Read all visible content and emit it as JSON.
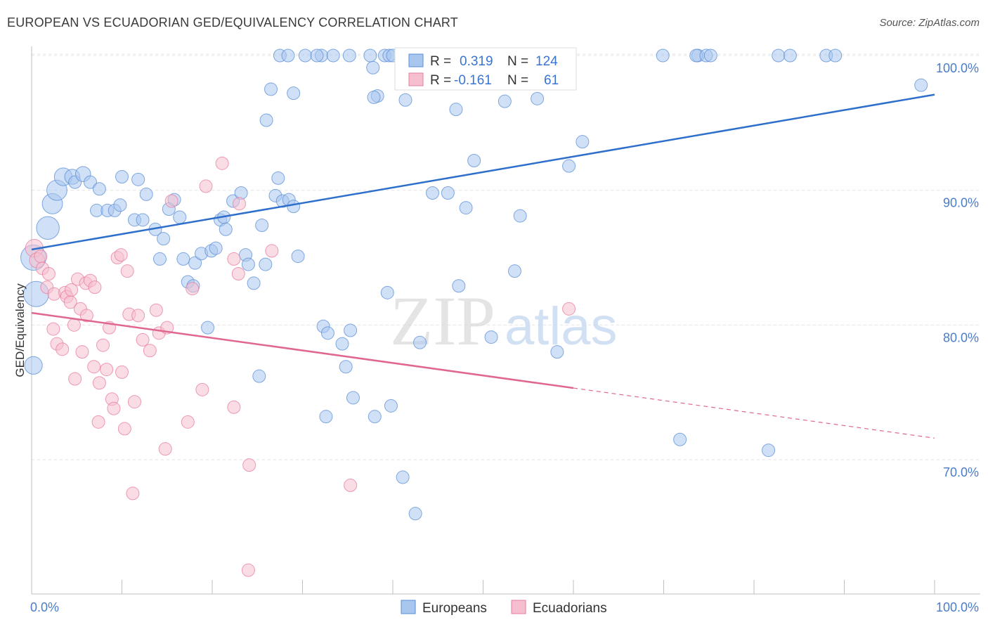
{
  "title": "EUROPEAN VS ECUADORIAN GED/EQUIVALENCY CORRELATION CHART",
  "source": "Source: ZipAtlas.com",
  "watermark": {
    "zip": "ZIP",
    "atlas": "atlas"
  },
  "legend": {
    "r_label": "R =",
    "n_label": "N =",
    "european": {
      "r": "0.319",
      "n": "124"
    },
    "ecuadorian": {
      "r": "-0.161",
      "n": "61"
    }
  },
  "bottom_legend": {
    "european": "Europeans",
    "ecuadorian": "Ecuadorians"
  },
  "colors": {
    "european": "#5b8fd6",
    "european_fill": "#a9c6ee",
    "european_line": "#2e6fcc",
    "ecuadorian": "#e77c9d",
    "ecuadorian_fill": "#f6bfd0",
    "ecuadorian_line": "#e0678f"
  },
  "chart_data": {
    "type": "scatter",
    "title": "EUROPEAN VS ECUADORIAN GED/EQUIVALENCY CORRELATION CHART",
    "xlabel": "",
    "ylabel": "GED/Equivalency",
    "xlim": [
      0,
      100
    ],
    "ylim": [
      60.5,
      102
    ],
    "x_tick_labels": [
      "0.0%",
      "100.0%"
    ],
    "y_ticks": [
      70,
      80,
      90,
      100
    ],
    "y_tick_labels": [
      "70.0%",
      "80.0%",
      "90.0%",
      "100.0%"
    ],
    "grid": true,
    "series": [
      {
        "name": "Europeans",
        "trend": {
          "x0": 0,
          "y0": 85.6,
          "x1": 100,
          "y1": 97.1,
          "dashed_from": null
        },
        "points": [
          [
            0.2,
            85.0,
            2
          ],
          [
            0.5,
            82.3,
            2
          ],
          [
            0.2,
            77.0,
            1.4
          ],
          [
            1.8,
            87.2,
            1.8
          ],
          [
            2.3,
            89.0,
            1.6
          ],
          [
            2.8,
            90.0,
            1.6
          ],
          [
            3.5,
            91.0,
            1.4
          ],
          [
            4.5,
            91.0,
            1.2
          ],
          [
            4.8,
            90.6,
            1
          ],
          [
            5.7,
            91.2,
            1.2
          ],
          [
            6.5,
            90.6,
            1
          ],
          [
            7.5,
            90.1,
            1
          ],
          [
            7.2,
            88.5,
            1
          ],
          [
            8.4,
            88.5,
            1
          ],
          [
            9.2,
            88.5,
            1
          ],
          [
            9.8,
            88.9,
            1
          ],
          [
            10,
            91.0,
            1
          ],
          [
            11.8,
            90.8,
            1
          ],
          [
            11.4,
            87.8,
            1
          ],
          [
            12.3,
            87.8,
            1
          ],
          [
            12.7,
            89.7,
            1
          ],
          [
            13.7,
            87.1,
            1
          ],
          [
            14.6,
            86.4,
            1
          ],
          [
            14.2,
            84.9,
            1
          ],
          [
            15.2,
            88.6,
            1
          ],
          [
            15.8,
            89.3,
            1
          ],
          [
            16.4,
            88.0,
            1
          ],
          [
            16.8,
            84.9,
            1
          ],
          [
            17.3,
            83.2,
            1
          ],
          [
            17.9,
            82.9,
            1
          ],
          [
            18.1,
            84.6,
            1
          ],
          [
            18.8,
            85.3,
            1
          ],
          [
            19.5,
            79.8,
            1
          ],
          [
            19.9,
            85.5,
            1
          ],
          [
            20.4,
            85.7,
            1
          ],
          [
            20.9,
            87.8,
            1
          ],
          [
            21.3,
            88.0,
            1
          ],
          [
            21.5,
            87.1,
            1
          ],
          [
            22.3,
            89.2,
            1
          ],
          [
            23.2,
            89.8,
            1
          ],
          [
            23.7,
            85.2,
            1
          ],
          [
            24.0,
            84.5,
            1
          ],
          [
            24.6,
            83.1,
            1
          ],
          [
            25.5,
            87.4,
            1
          ],
          [
            25.9,
            84.5,
            1
          ],
          [
            26.5,
            97.5,
            1
          ],
          [
            27.0,
            89.6,
            1
          ],
          [
            27.3,
            90.9,
            1
          ],
          [
            27.8,
            89.2,
            1
          ],
          [
            28.5,
            89.3,
            1
          ],
          [
            29.0,
            88.8,
            1
          ],
          [
            29.5,
            85.1,
            1
          ],
          [
            29.0,
            97.2,
            1
          ],
          [
            32.3,
            79.9,
            1
          ],
          [
            32.8,
            79.4,
            1
          ],
          [
            34.4,
            78.6,
            1
          ],
          [
            34.8,
            76.9,
            1
          ],
          [
            35.3,
            79.6,
            1
          ],
          [
            35.6,
            74.6,
            1
          ],
          [
            38.3,
            97.0,
            1
          ],
          [
            37.9,
            96.9,
            1
          ],
          [
            38.0,
            73.2,
            1
          ],
          [
            39.8,
            74.0,
            1
          ],
          [
            39.4,
            82.4,
            1
          ],
          [
            41.4,
            96.7,
            1
          ],
          [
            41.1,
            68.7,
            1
          ],
          [
            42.5,
            66.0,
            1
          ],
          [
            43.0,
            78.7,
            1
          ],
          [
            44.4,
            89.8,
            1
          ],
          [
            45.5,
            100,
            1
          ],
          [
            46.1,
            89.8,
            1
          ],
          [
            47.3,
            82.9,
            1
          ],
          [
            47.0,
            96.0,
            1
          ],
          [
            48.1,
            88.7,
            1
          ],
          [
            48.5,
            100,
            1
          ],
          [
            50.6,
            100,
            1
          ],
          [
            49.0,
            92.2,
            1
          ],
          [
            50.4,
            100,
            1
          ],
          [
            50.9,
            79.1,
            1
          ],
          [
            52.4,
            96.6,
            1
          ],
          [
            53.5,
            84.0,
            1
          ],
          [
            54.1,
            88.1,
            1
          ],
          [
            56.0,
            96.8,
            1
          ],
          [
            57.1,
            100,
            1
          ],
          [
            58.0,
            100,
            1
          ],
          [
            58.2,
            78.0,
            1
          ],
          [
            59.5,
            91.8,
            1
          ],
          [
            61.0,
            93.6,
            1
          ],
          [
            69.9,
            100,
            1
          ],
          [
            71.8,
            71.5,
            1
          ],
          [
            73.8,
            100,
            1
          ],
          [
            73.6,
            100,
            1
          ],
          [
            74.7,
            100,
            1
          ],
          [
            75.2,
            100,
            1
          ],
          [
            81.6,
            70.7,
            1
          ],
          [
            82.7,
            100,
            1
          ],
          [
            84.0,
            100,
            1
          ],
          [
            88.0,
            100,
            1
          ],
          [
            89.0,
            100,
            1
          ],
          [
            98.5,
            97.8,
            1
          ],
          [
            26.0,
            95.2,
            1
          ],
          [
            25.2,
            76.2,
            1
          ],
          [
            32.6,
            73.2,
            1
          ],
          [
            37.8,
            99.1,
            1
          ],
          [
            39.1,
            100,
            1
          ],
          [
            39.6,
            100,
            1
          ],
          [
            44.9,
            100,
            1
          ],
          [
            35.2,
            100,
            1
          ],
          [
            32.1,
            100,
            1
          ],
          [
            48.8,
            100,
            1
          ],
          [
            40.0,
            100,
            1
          ],
          [
            46.5,
            100,
            1
          ],
          [
            42.8,
            100,
            1
          ],
          [
            43.9,
            100,
            1
          ],
          [
            49.5,
            100,
            1
          ],
          [
            52.2,
            100,
            1
          ],
          [
            53.0,
            100,
            1
          ],
          [
            55.9,
            100,
            1
          ],
          [
            37.5,
            100,
            1
          ],
          [
            27.5,
            100,
            1
          ],
          [
            28.4,
            100,
            1
          ],
          [
            30.3,
            100,
            1
          ],
          [
            31.6,
            100,
            1
          ],
          [
            33.4,
            100,
            1
          ]
        ]
      },
      {
        "name": "Ecuadorians",
        "trend": {
          "x0": 0,
          "y0": 80.9,
          "x1": 100,
          "y1": 71.6,
          "dashed_from": 60
        },
        "points": [
          [
            0.3,
            85.7,
            1.4
          ],
          [
            0.6,
            84.8,
            1.2
          ],
          [
            1.0,
            85.1,
            1
          ],
          [
            1.2,
            84.2,
            1
          ],
          [
            1.7,
            82.8,
            1
          ],
          [
            1.9,
            83.8,
            1
          ],
          [
            2.5,
            82.3,
            1
          ],
          [
            2.4,
            79.7,
            1
          ],
          [
            2.8,
            78.6,
            1
          ],
          [
            3.4,
            78.2,
            1
          ],
          [
            3.7,
            82.4,
            1
          ],
          [
            3.9,
            82.1,
            1
          ],
          [
            4.3,
            81.7,
            1
          ],
          [
            4.4,
            82.6,
            1
          ],
          [
            4.7,
            80.0,
            1
          ],
          [
            4.8,
            76.0,
            1
          ],
          [
            5.1,
            83.4,
            1
          ],
          [
            5.4,
            81.2,
            1
          ],
          [
            5.6,
            78.0,
            1
          ],
          [
            6.0,
            83.1,
            1
          ],
          [
            6.1,
            80.7,
            1
          ],
          [
            6.5,
            83.3,
            1
          ],
          [
            6.9,
            76.9,
            1
          ],
          [
            7.0,
            82.8,
            1
          ],
          [
            7.4,
            72.8,
            1
          ],
          [
            7.5,
            75.7,
            1
          ],
          [
            7.9,
            78.5,
            1
          ],
          [
            8.3,
            76.7,
            1
          ],
          [
            8.6,
            79.8,
            1
          ],
          [
            8.9,
            74.5,
            1
          ],
          [
            9.1,
            73.8,
            1
          ],
          [
            9.5,
            85.0,
            1
          ],
          [
            9.9,
            85.2,
            1
          ],
          [
            10.0,
            76.5,
            1
          ],
          [
            10.3,
            72.3,
            1
          ],
          [
            10.6,
            84.0,
            1
          ],
          [
            10.8,
            80.8,
            1
          ],
          [
            11.2,
            67.5,
            1
          ],
          [
            11.4,
            74.3,
            1
          ],
          [
            11.8,
            80.7,
            1
          ],
          [
            12.3,
            78.9,
            1
          ],
          [
            13.1,
            78.1,
            1
          ],
          [
            13.8,
            81.1,
            1
          ],
          [
            14.1,
            79.4,
            1
          ],
          [
            14.8,
            70.8,
            1
          ],
          [
            15.0,
            79.8,
            1
          ],
          [
            15.5,
            89.2,
            1
          ],
          [
            17.3,
            72.8,
            1
          ],
          [
            17.8,
            82.7,
            1
          ],
          [
            18.9,
            75.2,
            1
          ],
          [
            19.3,
            90.3,
            1
          ],
          [
            21.1,
            92.0,
            1
          ],
          [
            22.4,
            84.9,
            1
          ],
          [
            22.4,
            73.9,
            1
          ],
          [
            22.9,
            83.8,
            1
          ],
          [
            23.0,
            89.0,
            1
          ],
          [
            24.1,
            69.6,
            1
          ],
          [
            24.0,
            61.8,
            1
          ],
          [
            26.6,
            85.5,
            1
          ],
          [
            35.3,
            68.1,
            1
          ],
          [
            59.5,
            81.2,
            1
          ]
        ]
      }
    ]
  }
}
